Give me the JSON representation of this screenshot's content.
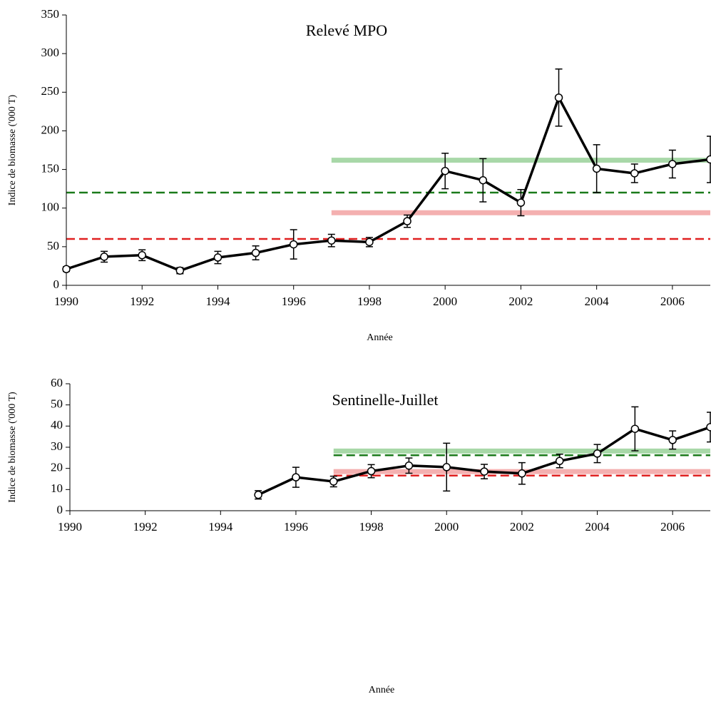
{
  "chart_data": [
    {
      "type": "line",
      "title": "Relevé MPO",
      "x_label": "Année",
      "y_label": "Indice de biomasse ('000 T)",
      "xlim": [
        1990,
        2007
      ],
      "xticks": [
        1990,
        1992,
        1994,
        1996,
        1998,
        2000,
        2002,
        2004,
        2006
      ],
      "ylim": [
        0,
        350
      ],
      "yticks": [
        0,
        50,
        100,
        150,
        200,
        250,
        300,
        350
      ],
      "x": [
        1990,
        1991,
        1992,
        1993,
        1994,
        1995,
        1996,
        1997,
        1998,
        1999,
        2000,
        2001,
        2002,
        2003,
        2004,
        2005,
        2006,
        2007
      ],
      "series": [
        {
          "color": "#000000",
          "values": [
            21,
            37,
            39,
            19,
            36,
            42,
            53,
            58,
            56,
            83,
            148,
            136,
            107,
            243,
            151,
            145,
            157,
            163
          ],
          "errors": [
            3,
            7,
            7,
            4,
            8,
            9,
            19,
            8,
            6,
            8,
            23,
            28,
            17,
            37,
            31,
            12,
            18,
            30
          ]
        }
      ],
      "reference_lines": [
        {
          "value": 162,
          "from": 1997,
          "to": 2007,
          "color": "#a8d8a8",
          "style": "solid"
        },
        {
          "value": 120,
          "from": 1990,
          "to": 2007,
          "color": "#1a7a1a",
          "style": "dashed"
        },
        {
          "value": 94,
          "from": 1997,
          "to": 2007,
          "color": "#f4b0b0",
          "style": "solid"
        },
        {
          "value": 60,
          "from": 1990,
          "to": 2007,
          "color": "#e02020",
          "style": "dashed"
        }
      ]
    },
    {
      "type": "line",
      "title": "Sentinelle-Juillet",
      "x_label": "Année",
      "y_label": "Indice de biomasse ('000 T)",
      "xlim": [
        1990,
        2007
      ],
      "xticks": [
        1990,
        1992,
        1994,
        1996,
        1998,
        2000,
        2002,
        2004,
        2006
      ],
      "ylim": [
        0,
        60
      ],
      "yticks": [
        0,
        10,
        20,
        30,
        40,
        50,
        60
      ],
      "x": [
        1995,
        1996,
        1997,
        1998,
        1999,
        2000,
        2001,
        2002,
        2003,
        2004,
        2005,
        2006,
        2007
      ],
      "series": [
        {
          "color": "#000000",
          "values": [
            7.5,
            15.8,
            13.8,
            18.7,
            21.3,
            20.6,
            18.5,
            17.6,
            23.5,
            27,
            38.7,
            33.4,
            39.5
          ],
          "errors": [
            2,
            4.7,
            2.5,
            3.1,
            3.6,
            11.3,
            3.4,
            5.1,
            3.2,
            4.3,
            10.4,
            4.3,
            7
          ]
        }
      ],
      "reference_lines": [
        {
          "value": 28.2,
          "from": 1997,
          "to": 2007,
          "color": "#a8d8a8",
          "style": "solid"
        },
        {
          "value": 26.2,
          "from": 1997,
          "to": 2007,
          "color": "#1a7a1a",
          "style": "dashed"
        },
        {
          "value": 18.5,
          "from": 1997,
          "to": 2007,
          "color": "#f4b0b0",
          "style": "solid"
        },
        {
          "value": 16.6,
          "from": 1997,
          "to": 2007,
          "color": "#e02020",
          "style": "dashed"
        }
      ]
    }
  ]
}
